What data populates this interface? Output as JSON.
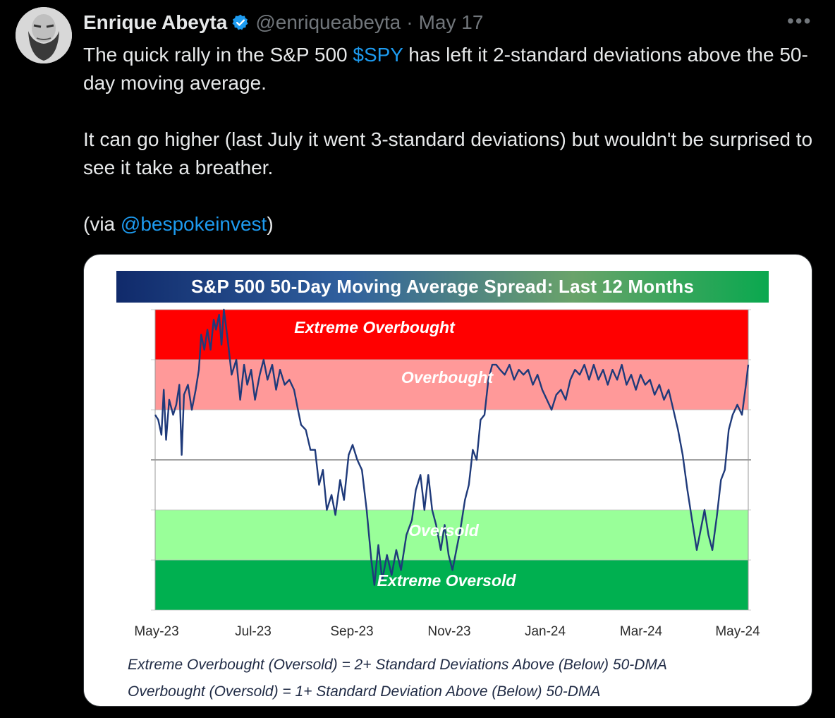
{
  "tweet": {
    "author_name": "Enrique Abeyta",
    "handle": "@enriqueabeyta",
    "separator": "·",
    "date": "May 17",
    "more": "•••",
    "line1_before": "The quick rally in the S&P 500 ",
    "cashtag": "$SPY",
    "line1_after": " has left it 2-standard deviations above the 50-day moving average.",
    "para2": "It can go higher (last July it went 3-standard deviations) but wouldn't be surprised to see it take a breather.",
    "para3_before": "(via ",
    "mention": "@bespokeinvest",
    "para3_after": ")"
  },
  "chart_data": {
    "type": "line",
    "title": "S&P 500 50-Day Moving Average Spread: Last 12 Months",
    "x_tick_labels": [
      "May-23",
      "Jul-23",
      "Sep-23",
      "Nov-23",
      "Jan-24",
      "Mar-24",
      "May-24"
    ],
    "ylim": [
      -3,
      3
    ],
    "y_axis_labels_shown": false,
    "zones": [
      {
        "label": "Extreme Overbought",
        "from": 2,
        "to": 3,
        "color": "#ff0000"
      },
      {
        "label": "Overbought",
        "from": 1,
        "to": 2,
        "color": "#ff9999"
      },
      {
        "label": "",
        "from": -1,
        "to": 1,
        "color": "#ffffff"
      },
      {
        "label": "Oversold",
        "from": -2,
        "to": -1,
        "color": "#99ff99"
      },
      {
        "label": "Extreme Oversold",
        "from": -3,
        "to": -2,
        "color": "#00b050"
      }
    ],
    "series": [
      {
        "color": "#1f3a7a",
        "points": [
          [
            0.0,
            0.9
          ],
          [
            0.4,
            0.8
          ],
          [
            0.8,
            0.5
          ],
          [
            1.1,
            1.4
          ],
          [
            1.4,
            0.4
          ],
          [
            1.8,
            1.2
          ],
          [
            2.3,
            0.9
          ],
          [
            2.7,
            1.1
          ],
          [
            3.1,
            1.5
          ],
          [
            3.4,
            0.1
          ],
          [
            3.7,
            1.3
          ],
          [
            4.2,
            1.5
          ],
          [
            4.7,
            1.0
          ],
          [
            5.2,
            1.4
          ],
          [
            5.6,
            1.8
          ],
          [
            5.9,
            2.5
          ],
          [
            6.3,
            2.2
          ],
          [
            6.7,
            2.6
          ],
          [
            7.1,
            2.2
          ],
          [
            7.5,
            2.8
          ],
          [
            7.8,
            2.6
          ],
          [
            8.2,
            2.9
          ],
          [
            8.5,
            2.3
          ],
          [
            8.8,
            3.0
          ],
          [
            9.3,
            2.4
          ],
          [
            9.8,
            1.7
          ],
          [
            10.4,
            2.0
          ],
          [
            10.9,
            1.2
          ],
          [
            11.4,
            1.9
          ],
          [
            11.8,
            1.5
          ],
          [
            12.3,
            1.8
          ],
          [
            12.8,
            1.2
          ],
          [
            13.4,
            1.7
          ],
          [
            13.9,
            2.0
          ],
          [
            14.4,
            1.6
          ],
          [
            15.0,
            1.9
          ],
          [
            15.5,
            1.4
          ],
          [
            16.0,
            1.8
          ],
          [
            16.6,
            1.5
          ],
          [
            17.2,
            1.6
          ],
          [
            17.8,
            1.4
          ],
          [
            18.3,
            1.0
          ],
          [
            18.7,
            0.7
          ],
          [
            19.3,
            0.6
          ],
          [
            19.9,
            0.2
          ],
          [
            20.5,
            0.2
          ],
          [
            21.0,
            -0.5
          ],
          [
            21.5,
            -0.2
          ],
          [
            22.0,
            -1.0
          ],
          [
            22.6,
            -0.7
          ],
          [
            23.1,
            -1.1
          ],
          [
            23.7,
            -0.4
          ],
          [
            24.2,
            -0.8
          ],
          [
            24.8,
            0.1
          ],
          [
            25.3,
            0.3
          ],
          [
            25.9,
            0.0
          ],
          [
            26.5,
            -0.2
          ],
          [
            27.1,
            -1.0
          ],
          [
            27.7,
            -2.0
          ],
          [
            28.1,
            -2.5
          ],
          [
            28.6,
            -1.7
          ],
          [
            29.1,
            -2.4
          ],
          [
            29.7,
            -1.9
          ],
          [
            30.3,
            -2.3
          ],
          [
            30.9,
            -1.8
          ],
          [
            31.5,
            -2.2
          ],
          [
            32.2,
            -1.5
          ],
          [
            32.9,
            -1.2
          ],
          [
            33.4,
            -0.6
          ],
          [
            34.0,
            -0.3
          ],
          [
            34.5,
            -1.0
          ],
          [
            35.0,
            -0.3
          ],
          [
            35.5,
            -1.0
          ],
          [
            36.0,
            -1.3
          ],
          [
            36.6,
            -1.8
          ],
          [
            37.1,
            -1.3
          ],
          [
            37.6,
            -1.9
          ],
          [
            38.1,
            -2.2
          ],
          [
            38.6,
            -1.8
          ],
          [
            39.1,
            -1.4
          ],
          [
            39.7,
            -0.8
          ],
          [
            40.2,
            -0.5
          ],
          [
            40.7,
            0.2
          ],
          [
            41.2,
            0.0
          ],
          [
            41.7,
            0.8
          ],
          [
            42.2,
            0.9
          ],
          [
            42.7,
            1.6
          ],
          [
            43.2,
            1.9
          ],
          [
            43.7,
            1.9
          ],
          [
            44.2,
            1.8
          ],
          [
            44.8,
            1.7
          ],
          [
            45.4,
            1.9
          ],
          [
            46.0,
            1.6
          ],
          [
            46.6,
            1.8
          ],
          [
            47.2,
            1.7
          ],
          [
            47.8,
            1.8
          ],
          [
            48.4,
            1.5
          ],
          [
            49.0,
            1.7
          ],
          [
            49.6,
            1.4
          ],
          [
            50.2,
            1.2
          ],
          [
            50.8,
            1.0
          ],
          [
            51.4,
            1.3
          ],
          [
            52.0,
            1.4
          ],
          [
            52.6,
            1.2
          ],
          [
            53.2,
            1.6
          ],
          [
            53.8,
            1.8
          ],
          [
            54.4,
            1.7
          ],
          [
            55.0,
            1.9
          ],
          [
            55.6,
            1.6
          ],
          [
            56.2,
            1.9
          ],
          [
            56.8,
            1.6
          ],
          [
            57.4,
            1.8
          ],
          [
            58.0,
            1.5
          ],
          [
            58.6,
            1.8
          ],
          [
            59.2,
            1.6
          ],
          [
            59.8,
            1.9
          ],
          [
            60.4,
            1.5
          ],
          [
            61.0,
            1.7
          ],
          [
            61.6,
            1.4
          ],
          [
            62.2,
            1.7
          ],
          [
            62.8,
            1.5
          ],
          [
            63.4,
            1.6
          ],
          [
            64.0,
            1.3
          ],
          [
            64.6,
            1.5
          ],
          [
            65.2,
            1.2
          ],
          [
            65.8,
            1.4
          ],
          [
            66.4,
            1.0
          ],
          [
            67.0,
            0.6
          ],
          [
            67.6,
            0.1
          ],
          [
            68.2,
            -0.6
          ],
          [
            68.8,
            -1.2
          ],
          [
            69.4,
            -1.8
          ],
          [
            69.9,
            -1.4
          ],
          [
            70.4,
            -1.0
          ],
          [
            70.9,
            -1.5
          ],
          [
            71.4,
            -1.8
          ],
          [
            72.0,
            -1.1
          ],
          [
            72.5,
            -0.4
          ],
          [
            73.0,
            -0.2
          ],
          [
            73.5,
            0.6
          ],
          [
            74.0,
            0.9
          ],
          [
            74.6,
            1.1
          ],
          [
            75.2,
            0.9
          ],
          [
            75.7,
            1.5
          ],
          [
            76.0,
            1.9
          ]
        ]
      }
    ]
  },
  "footnotes": [
    "Extreme Overbought (Oversold) = 2+ Standard Deviations Above (Below) 50-DMA",
    "Overbought (Oversold) = 1+ Standard Deviation Above (Below) 50-DMA"
  ],
  "colors": {
    "background": "#000000",
    "text_primary": "#e7e9ea",
    "text_secondary": "#71767b",
    "link": "#1d9bf0",
    "verified_badge": "#1d9bf0"
  }
}
